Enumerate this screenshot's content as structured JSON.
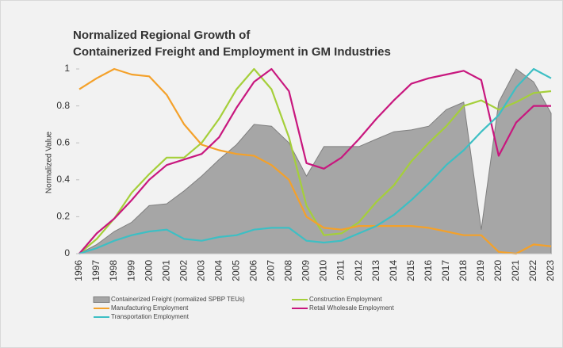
{
  "chart_data": {
    "type": "line",
    "title": [
      "Normalized Regional Growth of",
      "Containerized Freight and Employment in GM Industries"
    ],
    "ylabel": "Normalized Value",
    "categories": [
      "1996",
      "1997",
      "1998",
      "1999",
      "2000",
      "2001",
      "2002",
      "2003",
      "2004",
      "2005",
      "2006",
      "2007",
      "2008",
      "2009",
      "2010",
      "2011",
      "2012",
      "2013",
      "2014",
      "2015",
      "2016",
      "2017",
      "2018",
      "2019",
      "2020",
      "2021",
      "2022",
      "2023"
    ],
    "ylim": [
      0,
      1
    ],
    "yticks": [
      0,
      0.2,
      0.4,
      0.6,
      0.8,
      1
    ],
    "grid": false,
    "series": [
      {
        "name": "Containerized Freight (normalized SPBP TEUs)",
        "type": "area",
        "color": "#a6a6a6",
        "values": [
          0,
          0.05,
          0.12,
          0.17,
          0.26,
          0.27,
          0.34,
          0.42,
          0.51,
          0.59,
          0.7,
          0.69,
          0.6,
          0.42,
          0.58,
          0.58,
          0.58,
          0.62,
          0.66,
          0.67,
          0.69,
          0.78,
          0.82,
          0.13,
          0.82,
          1.0,
          0.93,
          0.76
        ]
      },
      {
        "name": "Construction Employment",
        "type": "line",
        "color": "#a5cf3a",
        "values": [
          0,
          0.08,
          0.19,
          0.33,
          0.43,
          0.52,
          0.52,
          0.6,
          0.73,
          0.89,
          1.0,
          0.89,
          0.63,
          0.26,
          0.1,
          0.11,
          0.17,
          0.28,
          0.37,
          0.5,
          0.6,
          0.69,
          0.8,
          0.83,
          0.78,
          0.82,
          0.87,
          0.88
        ]
      },
      {
        "name": "Manufacturing Employment",
        "type": "line",
        "color": "#f4a12a",
        "values": [
          0.89,
          0.95,
          1.0,
          0.97,
          0.96,
          0.86,
          0.7,
          0.59,
          0.56,
          0.54,
          0.53,
          0.48,
          0.4,
          0.2,
          0.14,
          0.13,
          0.15,
          0.15,
          0.15,
          0.15,
          0.14,
          0.12,
          0.1,
          0.1,
          0.01,
          0,
          0.05,
          0.04
        ]
      },
      {
        "name": "Retail Wholesale Employment",
        "type": "line",
        "color": "#c8177e",
        "values": [
          0,
          0.11,
          0.19,
          0.29,
          0.4,
          0.48,
          0.51,
          0.54,
          0.63,
          0.79,
          0.93,
          1.0,
          0.88,
          0.49,
          0.46,
          0.52,
          0.62,
          0.73,
          0.83,
          0.92,
          0.95,
          0.97,
          0.99,
          0.94,
          0.53,
          0.71,
          0.8,
          0.8
        ]
      },
      {
        "name": "Transportation Employment",
        "type": "line",
        "color": "#3dbfc4",
        "values": [
          0,
          0.03,
          0.07,
          0.1,
          0.12,
          0.13,
          0.08,
          0.07,
          0.09,
          0.1,
          0.13,
          0.14,
          0.14,
          0.07,
          0.06,
          0.07,
          0.11,
          0.15,
          0.21,
          0.29,
          0.38,
          0.48,
          0.56,
          0.66,
          0.75,
          0.9,
          1.0,
          0.95
        ]
      }
    ]
  }
}
